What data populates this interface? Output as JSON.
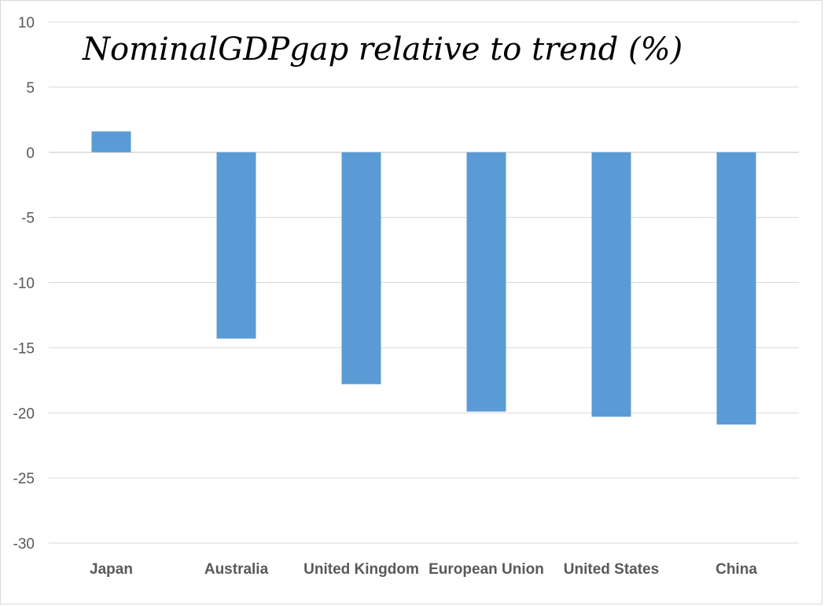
{
  "chart_data": {
    "type": "bar",
    "title": "NominalGDPgap relative to trend (%)",
    "xlabel": "",
    "ylabel": "",
    "categories": [
      "Japan",
      "Australia",
      "United Kingdom",
      "European Union",
      "United States",
      "China"
    ],
    "values": [
      1.6,
      -14.3,
      -17.8,
      -19.9,
      -20.3,
      -20.9
    ],
    "ylim": [
      -30,
      10
    ],
    "yticks": [
      10,
      5,
      0,
      -5,
      -10,
      -15,
      -20,
      -25,
      -30
    ],
    "grid": true,
    "legend": "none",
    "bar_color": "#5b9bd5",
    "grid_color": "#d9d9d9"
  }
}
